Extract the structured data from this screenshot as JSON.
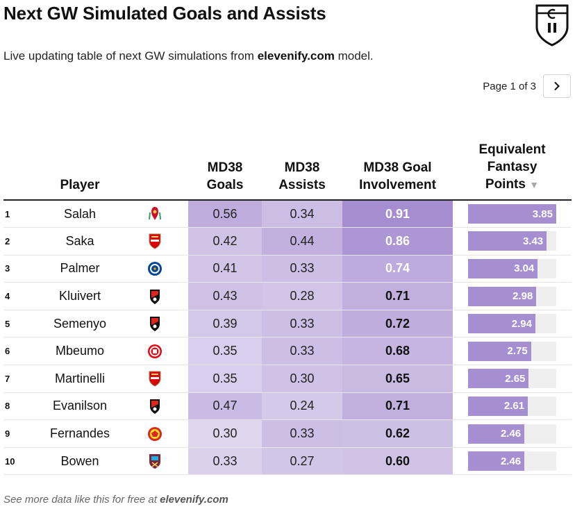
{
  "header": {
    "title": "Next GW Simulated Goals and Assists",
    "subtitle_prefix": "Live updating table of next GW simulations from ",
    "subtitle_brand": "elevenify.com",
    "subtitle_suffix": " model."
  },
  "pager": {
    "label": "Page 1 of 3"
  },
  "columns": {
    "player": "Player",
    "goals_1": "MD38",
    "goals_2": "Goals",
    "assists_1": "MD38",
    "assists_2": "Assists",
    "gi_1": "MD38 Goal",
    "gi_2": "Involvement",
    "fp_1": "Equivalent",
    "fp_2": "Fantasy",
    "fp_3": "Points",
    "sort_icon": "▼"
  },
  "colors": {
    "bar": "#a68fd1",
    "bar_track": "#efefef",
    "heat_low": "#ece6f5",
    "heat_high": "#9f86cc"
  },
  "chart_data": {
    "type": "table",
    "fp_max": 3.85,
    "rows": [
      {
        "rank": "1",
        "player": "Salah",
        "club": "liverpool",
        "goals": "0.56",
        "assists": "0.34",
        "gi": "0.91",
        "fp": "3.85",
        "fp_value": 3.85
      },
      {
        "rank": "2",
        "player": "Saka",
        "club": "arsenal",
        "goals": "0.42",
        "assists": "0.44",
        "gi": "0.86",
        "fp": "3.43",
        "fp_value": 3.43
      },
      {
        "rank": "3",
        "player": "Palmer",
        "club": "chelsea",
        "goals": "0.41",
        "assists": "0.33",
        "gi": "0.74",
        "fp": "3.04",
        "fp_value": 3.04
      },
      {
        "rank": "4",
        "player": "Kluivert",
        "club": "bournemouth",
        "goals": "0.43",
        "assists": "0.28",
        "gi": "0.71",
        "fp": "2.98",
        "fp_value": 2.98
      },
      {
        "rank": "5",
        "player": "Semenyo",
        "club": "bournemouth",
        "goals": "0.39",
        "assists": "0.33",
        "gi": "0.72",
        "fp": "2.94",
        "fp_value": 2.94
      },
      {
        "rank": "6",
        "player": "Mbeumo",
        "club": "brentford",
        "goals": "0.35",
        "assists": "0.33",
        "gi": "0.68",
        "fp": "2.75",
        "fp_value": 2.75
      },
      {
        "rank": "7",
        "player": "Martinelli",
        "club": "arsenal",
        "goals": "0.35",
        "assists": "0.30",
        "gi": "0.65",
        "fp": "2.65",
        "fp_value": 2.65
      },
      {
        "rank": "8",
        "player": "Evanilson",
        "club": "bournemouth",
        "goals": "0.47",
        "assists": "0.24",
        "gi": "0.71",
        "fp": "2.61",
        "fp_value": 2.61
      },
      {
        "rank": "9",
        "player": "Fernandes",
        "club": "man-utd",
        "goals": "0.30",
        "assists": "0.33",
        "gi": "0.62",
        "fp": "2.46",
        "fp_value": 2.46
      },
      {
        "rank": "10",
        "player": "Bowen",
        "club": "west-ham",
        "goals": "0.33",
        "assists": "0.27",
        "gi": "0.60",
        "fp": "2.46",
        "fp_value": 2.46
      }
    ]
  },
  "footer": {
    "prefix": "See more data like this for free at ",
    "brand": "elevenify.com"
  }
}
